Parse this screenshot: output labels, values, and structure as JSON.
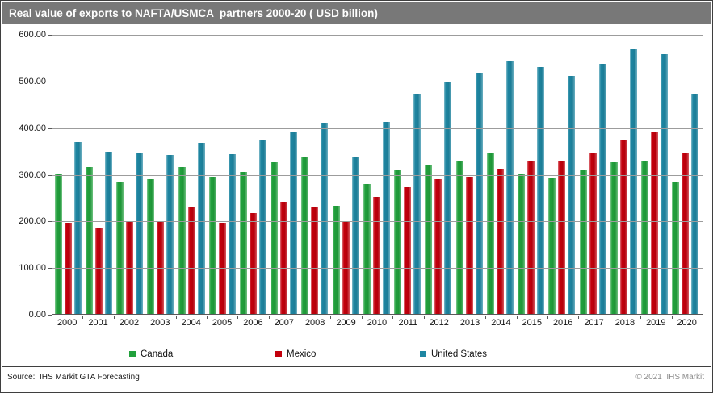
{
  "title": "Real value of exports to NAFTA/USMCA  partners 2000-20 ( USD billion)",
  "footer": {
    "source": "Source:  IHS Markit GTA Forecasting",
    "copyright": "© 2021  IHS Markit"
  },
  "colors": {
    "title_bar": "#787878",
    "gridline": "#9c9c9c",
    "axis": "#595959",
    "canada": "#21A13C",
    "mexico": "#C3000C",
    "united_states": "#1E86A2"
  },
  "chart_data": {
    "type": "bar",
    "title": "Real value of exports to NAFTA/USMCA partners 2000-20 (USD billion)",
    "xlabel": "",
    "ylabel": "",
    "ylim": [
      0,
      600
    ],
    "grid": true,
    "legend_position": "bottom",
    "y_ticks": [
      "600.00",
      "500.00",
      "400.00",
      "300.00",
      "200.00",
      "100.00",
      "0.00"
    ],
    "categories": [
      "2000",
      "2001",
      "2002",
      "2003",
      "2004",
      "2005",
      "2006",
      "2007",
      "2008",
      "2009",
      "2010",
      "2011",
      "2012",
      "2013",
      "2014",
      "2015",
      "2016",
      "2017",
      "2018",
      "2019",
      "2020"
    ],
    "series": [
      {
        "name": "Canada",
        "color": "#21A13C",
        "values": [
          302,
          315,
          283,
          289,
          315,
          294,
          306,
          326,
          337,
          232,
          279,
          308,
          319,
          328,
          345,
          302,
          291,
          309,
          326,
          328,
          283
        ]
      },
      {
        "name": "Mexico",
        "color": "#C3000C",
        "values": [
          196,
          185,
          199,
          200,
          231,
          196,
          216,
          241,
          231,
          200,
          252,
          273,
          289,
          295,
          313,
          327,
          328,
          346,
          374,
          390,
          346
        ]
      },
      {
        "name": "United States",
        "color": "#1E86A2",
        "values": [
          370,
          348,
          346,
          342,
          368,
          344,
          372,
          391,
          409,
          339,
          412,
          471,
          499,
          517,
          543,
          530,
          512,
          538,
          568,
          558,
          473
        ]
      }
    ]
  }
}
